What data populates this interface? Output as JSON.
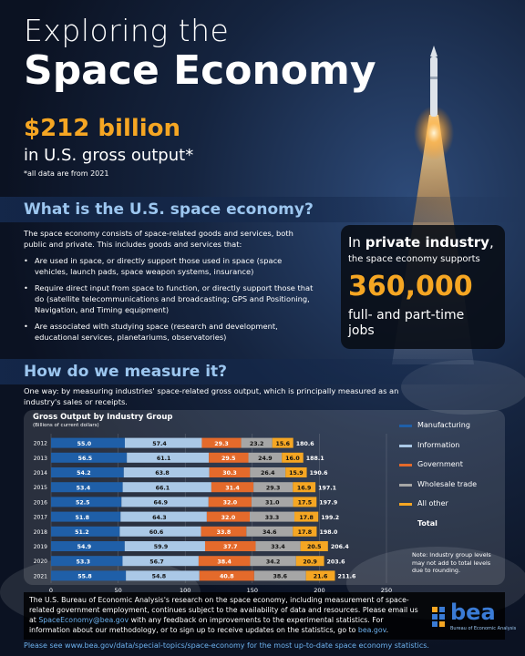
{
  "header": {
    "title_line1": "Exploring the",
    "title_line2": "Space Economy",
    "big_number": "$212 billion",
    "big_number_sub": "in U.S. gross output*",
    "footnote": "*all data are from 2021"
  },
  "section1": {
    "heading": "What is the U.S. space economy?",
    "intro": "The space economy consists of space-related goods and services, both public and private. This includes goods and services that:",
    "bullets": [
      "Are used in space, or directly support those used in space (space vehicles, launch pads, space weapon systems, insurance)",
      "Require direct input from space to function, or directly support those that do (satellite telecommunications and broadcasting; GPS and Positioning, Navigation, and Timing equipment)",
      "Are associated with studying space (research and development, educational services, planetariums, observatories)"
    ]
  },
  "private_box": {
    "line1_prefix": "In ",
    "line1_bold": "private industry",
    "line1_suffix": ",",
    "line2": "the space economy supports",
    "number": "360,000",
    "line3": "full- and part-time",
    "line4": "jobs"
  },
  "section2": {
    "heading": "How do we measure it?",
    "intro": "One way: by measuring industries' space-related gross output, which is principally measured as an industry's sales or receipts."
  },
  "chart_data": {
    "type": "bar",
    "orientation": "horizontal",
    "stacked": true,
    "title": "Gross Output by Industry Group",
    "subtitle": "(Billions of current dollars)",
    "categories": [
      "2012",
      "2013",
      "2014",
      "2015",
      "2016",
      "2017",
      "2018",
      "2019",
      "2020",
      "2021"
    ],
    "series": [
      {
        "name": "Manufacturing",
        "color": "#1f5fa8",
        "values": [
          55.0,
          56.5,
          54.2,
          53.4,
          52.5,
          51.8,
          51.2,
          54.9,
          53.3,
          55.8
        ]
      },
      {
        "name": "Information",
        "color": "#aac8e6",
        "values": [
          57.4,
          61.1,
          63.8,
          66.1,
          64.9,
          64.3,
          60.6,
          59.9,
          56.7,
          54.8
        ]
      },
      {
        "name": "Government",
        "color": "#e46a2b",
        "values": [
          29.3,
          29.5,
          30.3,
          31.4,
          32.0,
          32.0,
          33.8,
          37.7,
          38.4,
          40.8
        ]
      },
      {
        "name": "Wholesale trade",
        "color": "#a6a6a6",
        "values": [
          23.2,
          24.9,
          26.4,
          29.3,
          31.0,
          33.3,
          34.6,
          33.4,
          34.2,
          38.6
        ]
      },
      {
        "name": "All other",
        "color": "#f5a623",
        "values": [
          15.6,
          16.0,
          15.9,
          16.9,
          17.5,
          17.8,
          17.8,
          20.5,
          20.9,
          21.6
        ]
      }
    ],
    "totals_label": "Total",
    "totals": [
      "180.6",
      "188.1",
      "190.6",
      "197.1",
      "197.9",
      "199.2",
      "198.0",
      "206.4",
      "203.6",
      "211.6"
    ],
    "xlim": [
      0,
      250
    ],
    "xticks": [
      0,
      50,
      100,
      150,
      200,
      250
    ],
    "legend_position": "right",
    "note": "Note: Industry group levels may not add to total levels due to rounding."
  },
  "footer": {
    "body_part1": "The U.S. Bureau of Economic Analysis's research on the space economy, including measurement of space-related government employment, continues subject to the availability of data and resources. Please email us at ",
    "email": "SpaceEconomy@bea.gov",
    "body_part2": " with any feedback on improvements to the experimental statistics. For information about our methodology, or to sign up to receive updates on the statistics, go to ",
    "site": "bea.gov",
    "body_part3": ".",
    "logo_text": "bea",
    "logo_sub": "Bureau of Economic Analysis",
    "see_link": "Please see www.bea.gov/data/special-topics/space-economy for the most up-to-date space economy statistics."
  }
}
